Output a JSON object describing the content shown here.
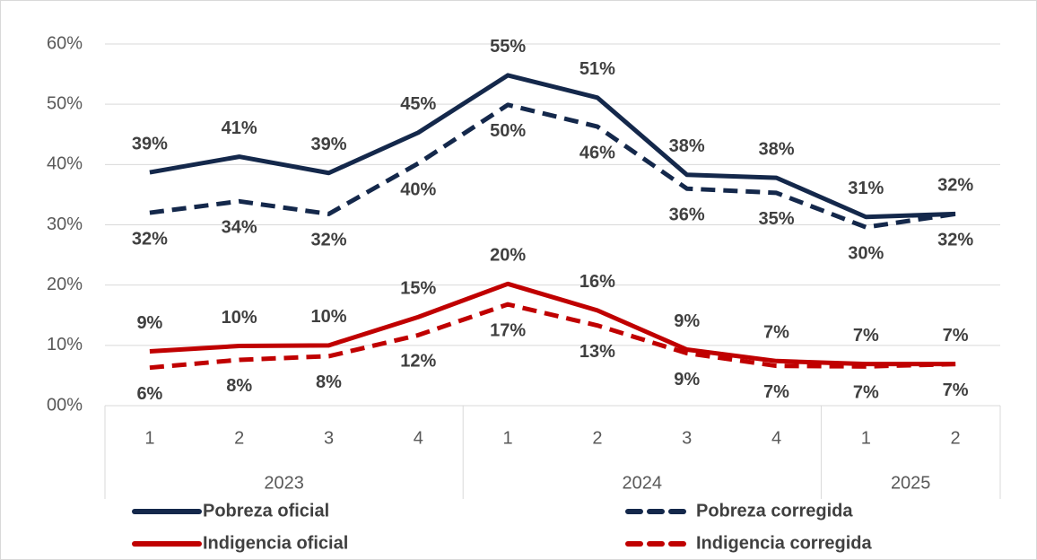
{
  "chart_data": {
    "type": "line",
    "category_groups": [
      {
        "label": "2023",
        "categories": [
          "1",
          "2",
          "3",
          "4"
        ]
      },
      {
        "label": "2024",
        "categories": [
          "1",
          "2",
          "3",
          "4"
        ]
      },
      {
        "label": "2025",
        "categories": [
          "1",
          "2"
        ]
      }
    ],
    "ylim": [
      0,
      60
    ],
    "yticks": [
      {
        "value": 0,
        "label": "00%"
      },
      {
        "value": 10,
        "label": "10%"
      },
      {
        "value": 20,
        "label": "20%"
      },
      {
        "value": 30,
        "label": "30%"
      },
      {
        "value": 40,
        "label": "40%"
      },
      {
        "value": 50,
        "label": "50%"
      },
      {
        "value": 60,
        "label": "60%"
      }
    ],
    "grid": true,
    "legend": "bottom",
    "series": [
      {
        "name": "Pobreza oficial",
        "color": "#14284b",
        "dashed": false,
        "label_position": "above",
        "values": [
          38.7,
          41.3,
          38.6,
          45.3,
          54.8,
          51.1,
          38.3,
          37.8,
          31.3,
          31.8
        ],
        "value_labels": [
          "39%",
          "41%",
          "39%",
          "45%",
          "55%",
          "51%",
          "38%",
          "38%",
          "31%",
          "32%"
        ]
      },
      {
        "name": "Pobreza corregida",
        "color": "#14284b",
        "dashed": true,
        "label_position": "below",
        "values": [
          32.0,
          33.9,
          31.8,
          40.2,
          49.9,
          46.3,
          36.0,
          35.3,
          29.6,
          31.8
        ],
        "value_labels": [
          "32%",
          "34%",
          "32%",
          "40%",
          "50%",
          "46%",
          "36%",
          "35%",
          "30%",
          "32%"
        ]
      },
      {
        "name": "Indigencia oficial",
        "color": "#c00000",
        "dashed": false,
        "label_position": "above",
        "values": [
          9.0,
          9.9,
          10.0,
          14.7,
          20.2,
          15.8,
          9.3,
          7.4,
          6.9,
          6.9
        ],
        "value_labels": [
          "9%",
          "10%",
          "10%",
          "15%",
          "20%",
          "16%",
          "9%",
          "7%",
          "7%",
          "7%"
        ]
      },
      {
        "name": "Indigencia corregida",
        "color": "#c00000",
        "dashed": true,
        "label_position": "below",
        "values": [
          6.3,
          7.6,
          8.2,
          11.7,
          16.8,
          13.3,
          8.7,
          6.6,
          6.5,
          6.9
        ],
        "value_labels": [
          "6%",
          "8%",
          "8%",
          "12%",
          "17%",
          "13%",
          "9%",
          "7%",
          "7%",
          "7%"
        ]
      }
    ]
  }
}
